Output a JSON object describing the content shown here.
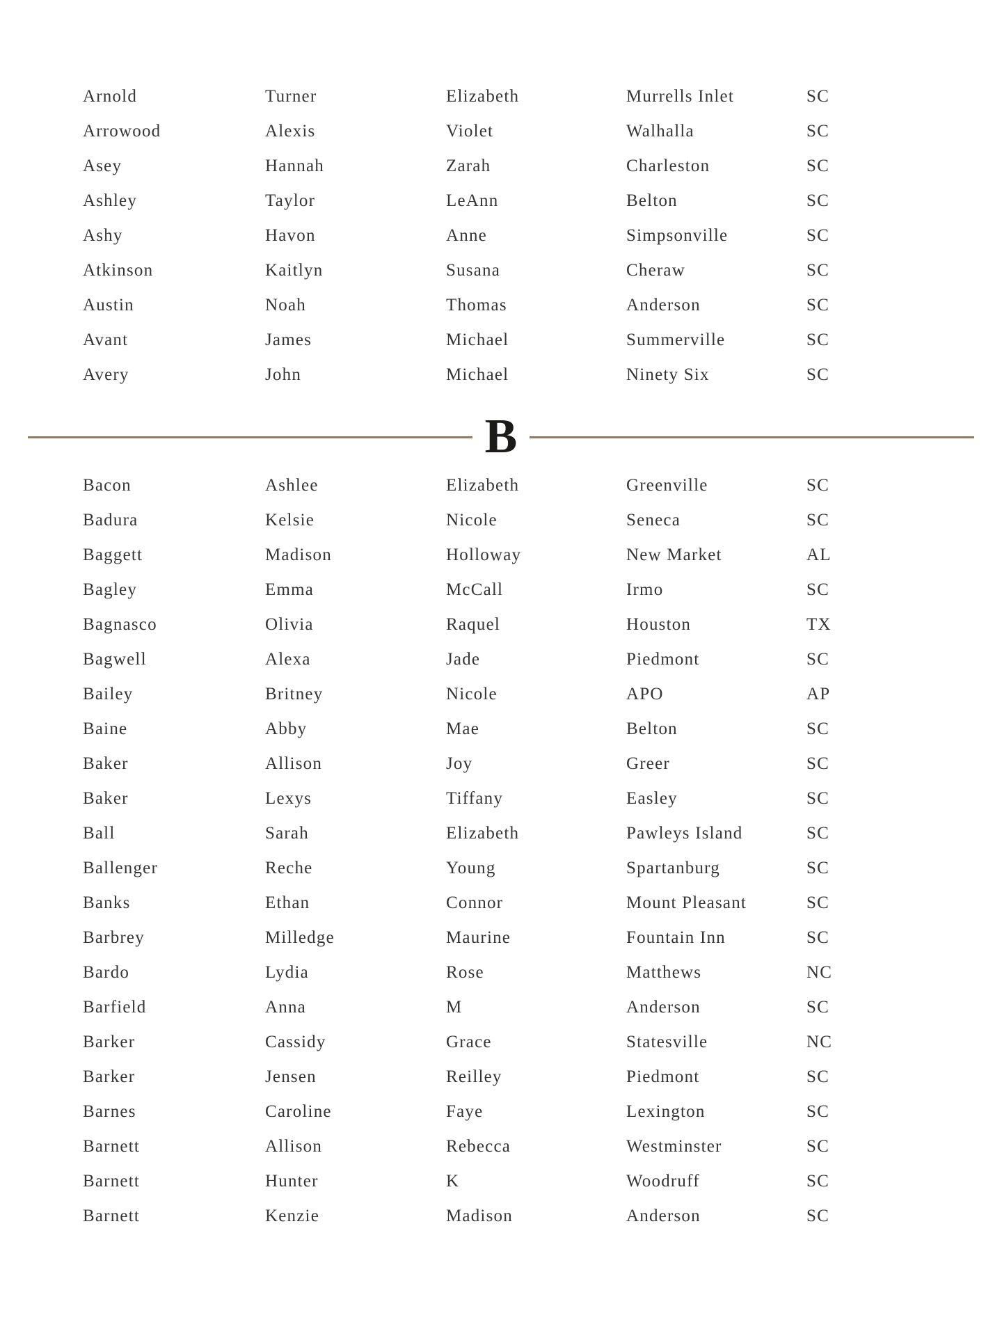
{
  "divider": {
    "letter": "B",
    "line_color": "#9a7b4f",
    "letter_color": "#1c1b17"
  },
  "text_color": "#353535",
  "section_a": {
    "rows": [
      {
        "last": "Arnold",
        "first": "Turner",
        "middle": "Elizabeth",
        "city": "Murrells Inlet",
        "state": "SC"
      },
      {
        "last": "Arrowood",
        "first": "Alexis",
        "middle": "Violet",
        "city": "Walhalla",
        "state": "SC"
      },
      {
        "last": "Asey",
        "first": "Hannah",
        "middle": "Zarah",
        "city": "Charleston",
        "state": "SC"
      },
      {
        "last": "Ashley",
        "first": "Taylor",
        "middle": "LeAnn",
        "city": "Belton",
        "state": "SC"
      },
      {
        "last": "Ashy",
        "first": "Havon",
        "middle": "Anne",
        "city": "Simpsonville",
        "state": "SC"
      },
      {
        "last": "Atkinson",
        "first": "Kaitlyn",
        "middle": "Susana",
        "city": "Cheraw",
        "state": "SC"
      },
      {
        "last": "Austin",
        "first": "Noah",
        "middle": "Thomas",
        "city": "Anderson",
        "state": "SC"
      },
      {
        "last": "Avant",
        "first": "James",
        "middle": "Michael",
        "city": "Summerville",
        "state": "SC"
      },
      {
        "last": "Avery",
        "first": "John",
        "middle": "Michael",
        "city": "Ninety Six",
        "state": "SC"
      }
    ]
  },
  "section_b": {
    "rows": [
      {
        "last": "Bacon",
        "first": "Ashlee",
        "middle": "Elizabeth",
        "city": "Greenville",
        "state": "SC"
      },
      {
        "last": "Badura",
        "first": "Kelsie",
        "middle": "Nicole",
        "city": "Seneca",
        "state": "SC"
      },
      {
        "last": "Baggett",
        "first": "Madison",
        "middle": "Holloway",
        "city": "New Market",
        "state": "AL"
      },
      {
        "last": "Bagley",
        "first": "Emma",
        "middle": "McCall",
        "city": "Irmo",
        "state": "SC"
      },
      {
        "last": "Bagnasco",
        "first": "Olivia",
        "middle": "Raquel",
        "city": "Houston",
        "state": "TX"
      },
      {
        "last": "Bagwell",
        "first": "Alexa",
        "middle": "Jade",
        "city": "Piedmont",
        "state": "SC"
      },
      {
        "last": "Bailey",
        "first": "Britney",
        "middle": "Nicole",
        "city": "APO",
        "state": "AP"
      },
      {
        "last": "Baine",
        "first": "Abby",
        "middle": "Mae",
        "city": "Belton",
        "state": "SC"
      },
      {
        "last": "Baker",
        "first": "Allison",
        "middle": "Joy",
        "city": "Greer",
        "state": "SC"
      },
      {
        "last": "Baker",
        "first": "Lexys",
        "middle": "Tiffany",
        "city": "Easley",
        "state": "SC"
      },
      {
        "last": "Ball",
        "first": "Sarah",
        "middle": "Elizabeth",
        "city": "Pawleys Island",
        "state": "SC"
      },
      {
        "last": "Ballenger",
        "first": "Reche",
        "middle": "Young",
        "city": "Spartanburg",
        "state": "SC"
      },
      {
        "last": "Banks",
        "first": "Ethan",
        "middle": "Connor",
        "city": "Mount Pleasant",
        "state": "SC"
      },
      {
        "last": "Barbrey",
        "first": "Milledge",
        "middle": "Maurine",
        "city": "Fountain Inn",
        "state": "SC"
      },
      {
        "last": "Bardo",
        "first": "Lydia",
        "middle": "Rose",
        "city": "Matthews",
        "state": "NC"
      },
      {
        "last": "Barfield",
        "first": "Anna",
        "middle": "M",
        "city": "Anderson",
        "state": "SC"
      },
      {
        "last": "Barker",
        "first": "Cassidy",
        "middle": "Grace",
        "city": "Statesville",
        "state": "NC"
      },
      {
        "last": "Barker",
        "first": "Jensen",
        "middle": "Reilley",
        "city": "Piedmont",
        "state": "SC"
      },
      {
        "last": "Barnes",
        "first": "Caroline",
        "middle": "Faye",
        "city": "Lexington",
        "state": "SC"
      },
      {
        "last": "Barnett",
        "first": "Allison",
        "middle": "Rebecca",
        "city": "Westminster",
        "state": "SC"
      },
      {
        "last": "Barnett",
        "first": "Hunter",
        "middle": "K",
        "city": "Woodruff",
        "state": "SC"
      },
      {
        "last": "Barnett",
        "first": "Kenzie",
        "middle": "Madison",
        "city": "Anderson",
        "state": "SC"
      }
    ]
  }
}
